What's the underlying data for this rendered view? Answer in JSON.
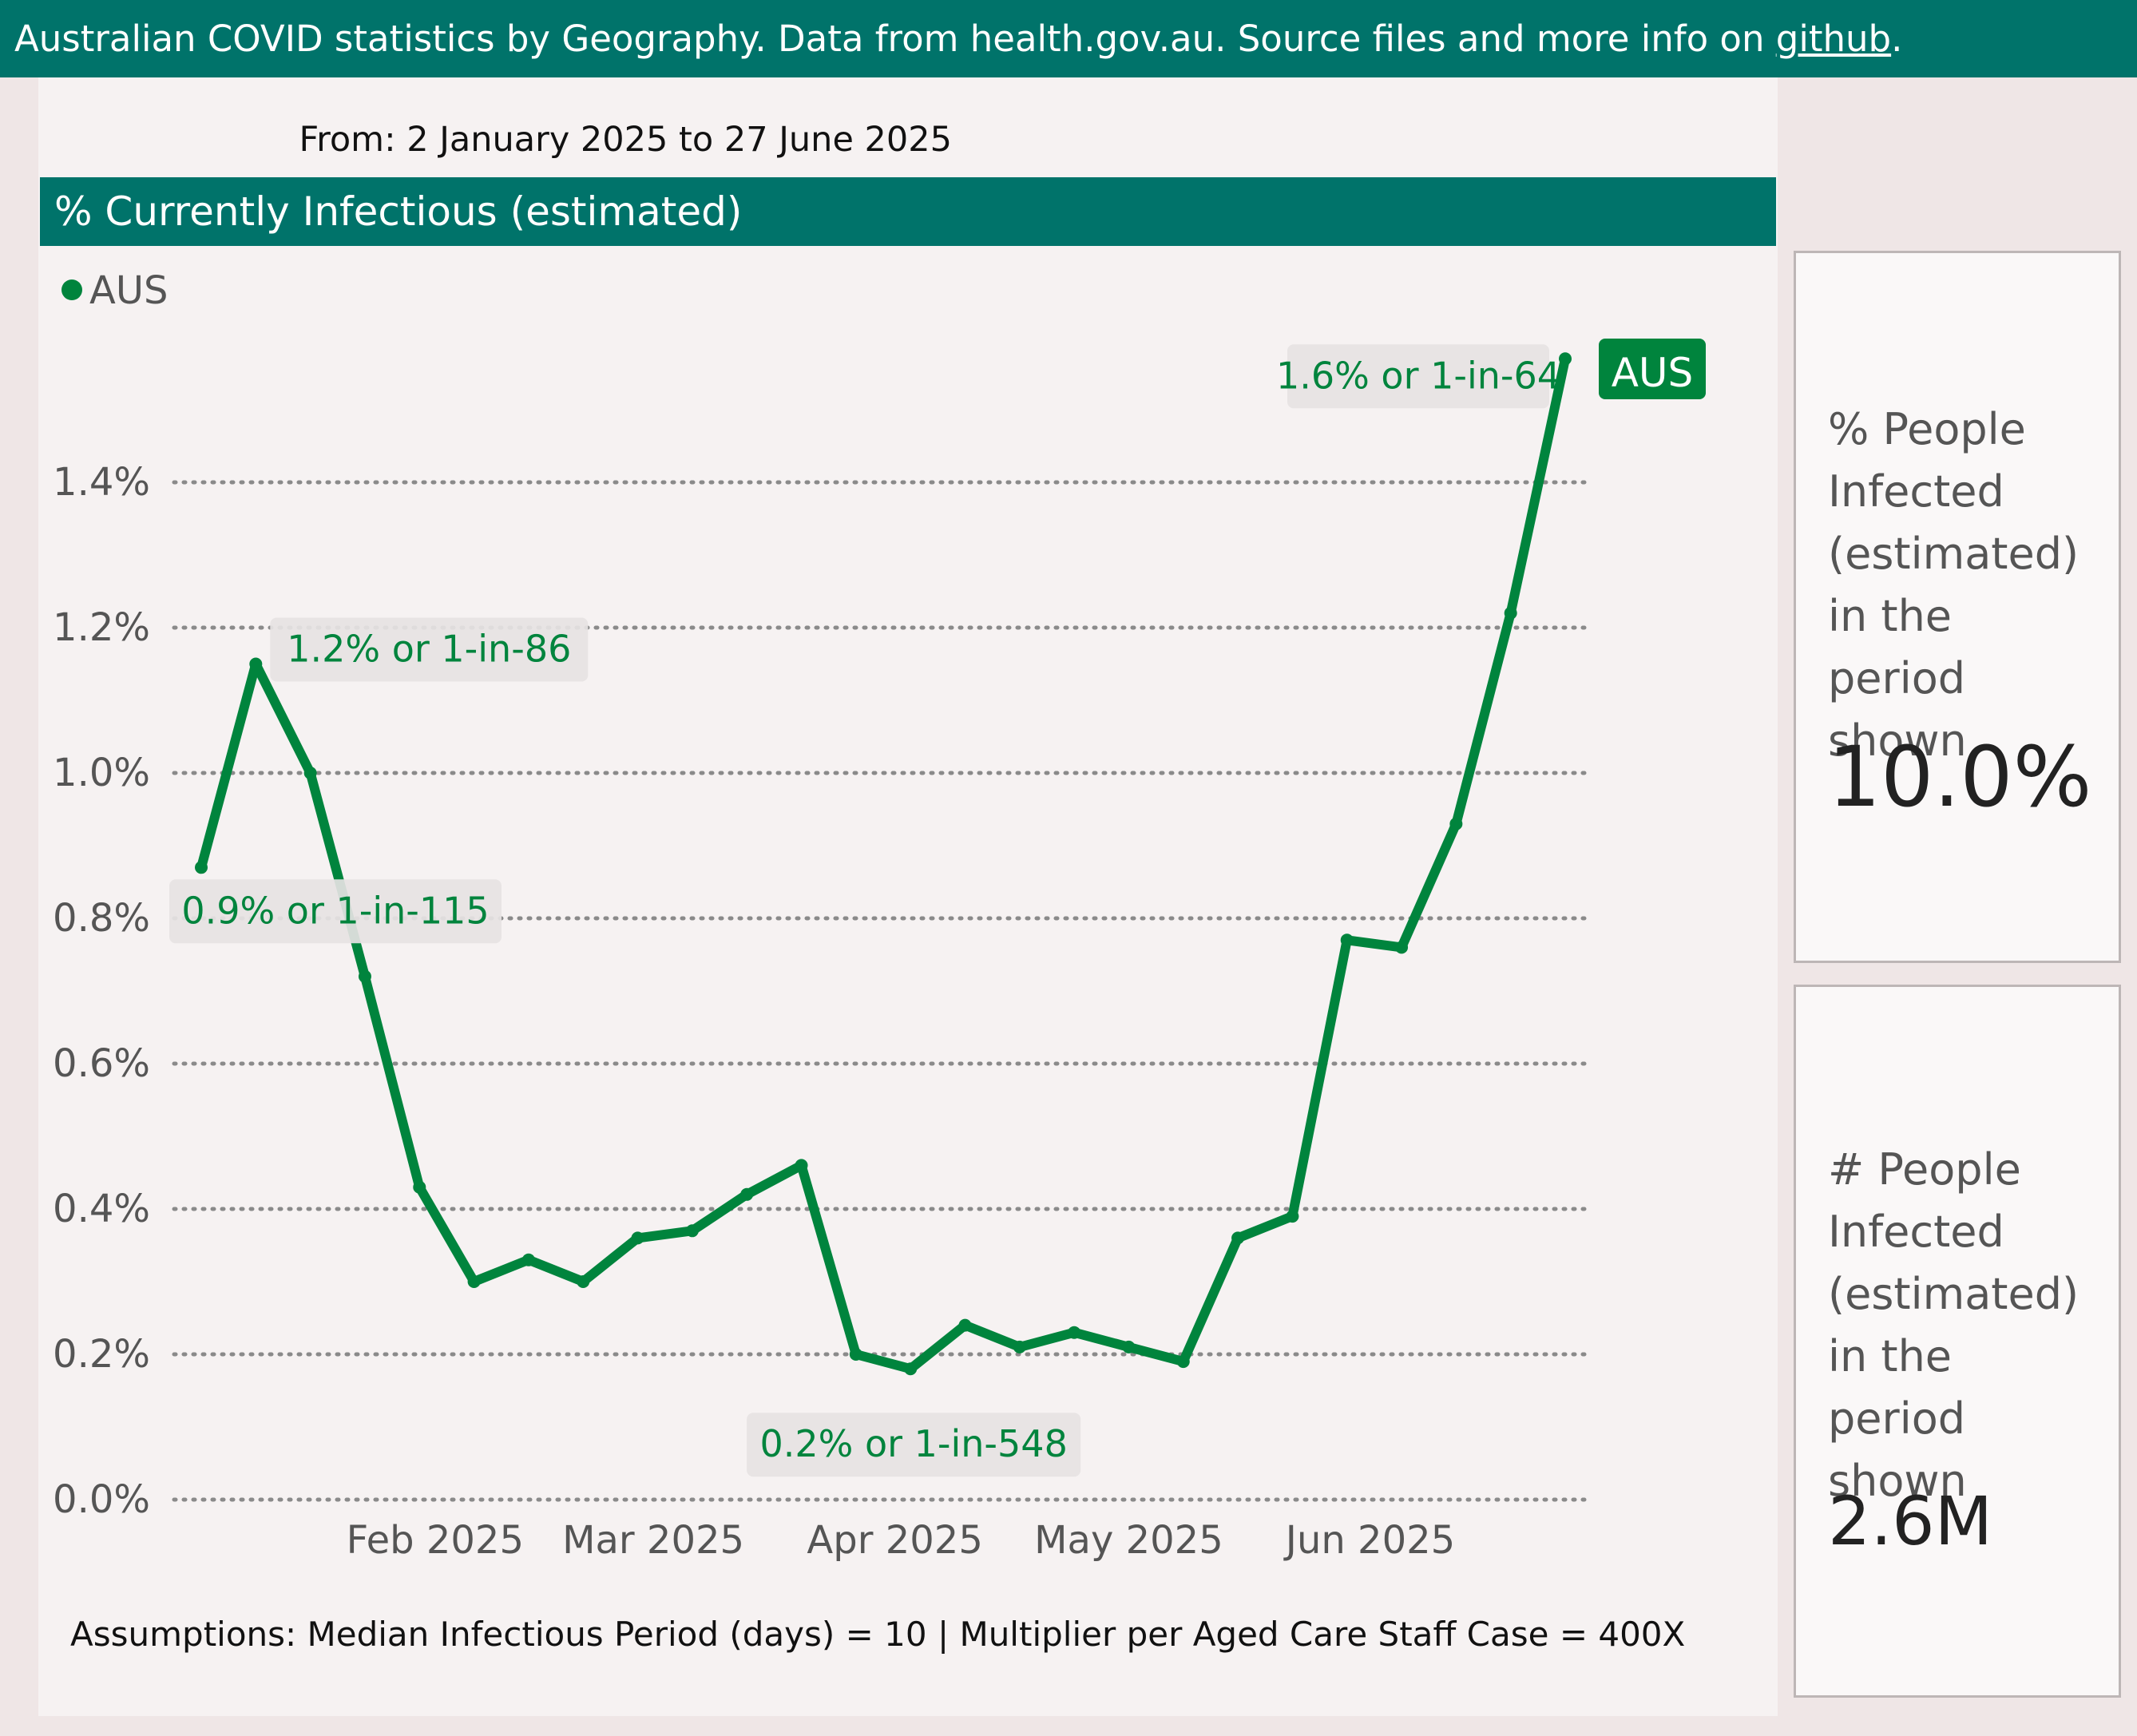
{
  "header": {
    "text_before_link": "Australian COVID statistics by Geography. Data from health.gov.au. Source files and more info on ",
    "link_text": "github",
    "text_after_link": "."
  },
  "date_range": "From: 2 January 2025 to 27 June 2025",
  "chart_title": "% Currently Infectious (estimated)",
  "assumptions": "Assumptions: Median Infectious Period (days) = 10 | Multiplier per Aged Care Staff Case = 400X",
  "cards": [
    {
      "label_lines": [
        "% People",
        "Infected",
        "(estimated)",
        "in the period",
        "shown"
      ],
      "value": "10.0%"
    },
    {
      "label_lines": [
        "# People",
        "Infected",
        "(estimated)",
        "in the period",
        "shown"
      ],
      "value": "2.6M"
    }
  ],
  "colors": {
    "brand": "#00736a",
    "series": "#00843d",
    "panel": "#f6f2f2",
    "page": "#efe6e6"
  },
  "chart_data": {
    "type": "line",
    "title": "% Currently Infectious (estimated)",
    "xlabel": "",
    "ylabel": "",
    "ylim": [
      0,
      1.6
    ],
    "y_ticks": [
      0,
      0.2,
      0.4,
      0.6,
      0.8,
      1.0,
      1.2,
      1.4
    ],
    "y_tick_labels": [
      "0.0%",
      "0.2%",
      "0.4%",
      "0.6%",
      "0.8%",
      "1.0%",
      "1.2%",
      "1.4%"
    ],
    "x_ticks": [
      "2025-02-01",
      "2025-03-01",
      "2025-04-01",
      "2025-05-01",
      "2025-06-01"
    ],
    "x_tick_labels": [
      "Feb 2025",
      "Mar 2025",
      "Apr 2025",
      "May 2025",
      "Jun 2025"
    ],
    "grid": true,
    "grid_style": "dotted",
    "legend": {
      "position": "top-left",
      "entries": [
        "AUS"
      ]
    },
    "end_label": "AUS",
    "series": [
      {
        "name": "AUS",
        "color": "#00843d",
        "points": [
          {
            "x": "2025-01-02",
            "y": 0.87
          },
          {
            "x": "2025-01-09",
            "y": 1.15
          },
          {
            "x": "2025-01-16",
            "y": 1.0
          },
          {
            "x": "2025-01-23",
            "y": 0.72
          },
          {
            "x": "2025-01-30",
            "y": 0.43
          },
          {
            "x": "2025-02-06",
            "y": 0.3
          },
          {
            "x": "2025-02-13",
            "y": 0.33
          },
          {
            "x": "2025-02-20",
            "y": 0.3
          },
          {
            "x": "2025-02-27",
            "y": 0.36
          },
          {
            "x": "2025-03-06",
            "y": 0.37
          },
          {
            "x": "2025-03-13",
            "y": 0.42
          },
          {
            "x": "2025-03-20",
            "y": 0.46
          },
          {
            "x": "2025-03-27",
            "y": 0.2
          },
          {
            "x": "2025-04-03",
            "y": 0.18
          },
          {
            "x": "2025-04-10",
            "y": 0.24
          },
          {
            "x": "2025-04-17",
            "y": 0.21
          },
          {
            "x": "2025-04-24",
            "y": 0.23
          },
          {
            "x": "2025-05-01",
            "y": 0.21
          },
          {
            "x": "2025-05-08",
            "y": 0.19
          },
          {
            "x": "2025-05-15",
            "y": 0.36
          },
          {
            "x": "2025-05-22",
            "y": 0.39
          },
          {
            "x": "2025-05-29",
            "y": 0.77
          },
          {
            "x": "2025-06-05",
            "y": 0.76
          },
          {
            "x": "2025-06-12",
            "y": 0.93
          },
          {
            "x": "2025-06-19",
            "y": 1.22
          },
          {
            "x": "2025-06-26",
            "y": 1.57
          }
        ]
      }
    ],
    "annotations": [
      {
        "text": "1.2% or 1-in-86",
        "x": "2025-01-09",
        "y": 1.15
      },
      {
        "text": "0.9% or 1-in-115",
        "x": "2025-01-02",
        "y": 0.87
      },
      {
        "text": "0.2% or 1-in-548",
        "x": "2025-04-03",
        "y": 0.18
      },
      {
        "text": "1.6% or 1-in-64",
        "x": "2025-06-26",
        "y": 1.57
      }
    ]
  }
}
